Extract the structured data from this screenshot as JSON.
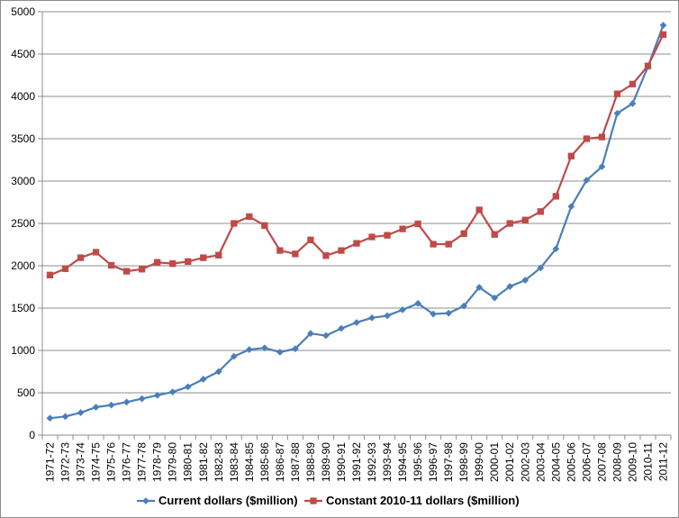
{
  "chart_data": {
    "type": "line",
    "title": "",
    "xlabel": "",
    "ylabel": "",
    "ylim": [
      0,
      5000
    ],
    "yticks": [
      0,
      500,
      1000,
      1500,
      2000,
      2500,
      3000,
      3500,
      4000,
      4500,
      5000
    ],
    "grid": true,
    "legend_position": "bottom",
    "categories": [
      "1971-72",
      "1972-73",
      "1973-74",
      "1974-75",
      "1975-76",
      "1976-77",
      "1977-78",
      "1978-79",
      "1979-80",
      "1980-81",
      "1981-82",
      "1982-83",
      "1983-84",
      "1984-85",
      "1985-86",
      "1986-87",
      "1987-88",
      "1988-89",
      "1989-90",
      "1990-91",
      "1991-92",
      "1992-93",
      "1993-94",
      "1994-95",
      "1995-96",
      "1996-97",
      "1997-98",
      "1998-99",
      "1999-00",
      "2000-01",
      "2001-02",
      "2002-03",
      "2003-04",
      "2004-05",
      "2005-06",
      "2006-07",
      "2007-08",
      "2008-09",
      "2009-10",
      "2010-11",
      "2011-12"
    ],
    "series": [
      {
        "name": "Current dollars ($million)",
        "color": "#4a7ebb",
        "marker": "diamond",
        "values": [
          200,
          220,
          265,
          330,
          355,
          390,
          430,
          470,
          510,
          570,
          660,
          750,
          930,
          1010,
          1030,
          980,
          1020,
          1200,
          1175,
          1260,
          1330,
          1385,
          1410,
          1480,
          1555,
          1430,
          1440,
          1525,
          1745,
          1620,
          1755,
          1830,
          1975,
          2200,
          2700,
          3010,
          3170,
          3800,
          3915,
          4350,
          4840
        ]
      },
      {
        "name": "Constant 2010-11 dollars ($million)",
        "color": "#be4b48",
        "marker": "square",
        "values": [
          1890,
          1965,
          2095,
          2160,
          2005,
          1935,
          1960,
          2040,
          2025,
          2050,
          2095,
          2125,
          2500,
          2580,
          2475,
          2180,
          2140,
          2305,
          2120,
          2180,
          2265,
          2340,
          2360,
          2435,
          2495,
          2255,
          2255,
          2380,
          2660,
          2370,
          2500,
          2540,
          2640,
          2820,
          3295,
          3500,
          3520,
          4030,
          4145,
          4360,
          4730
        ]
      }
    ]
  }
}
